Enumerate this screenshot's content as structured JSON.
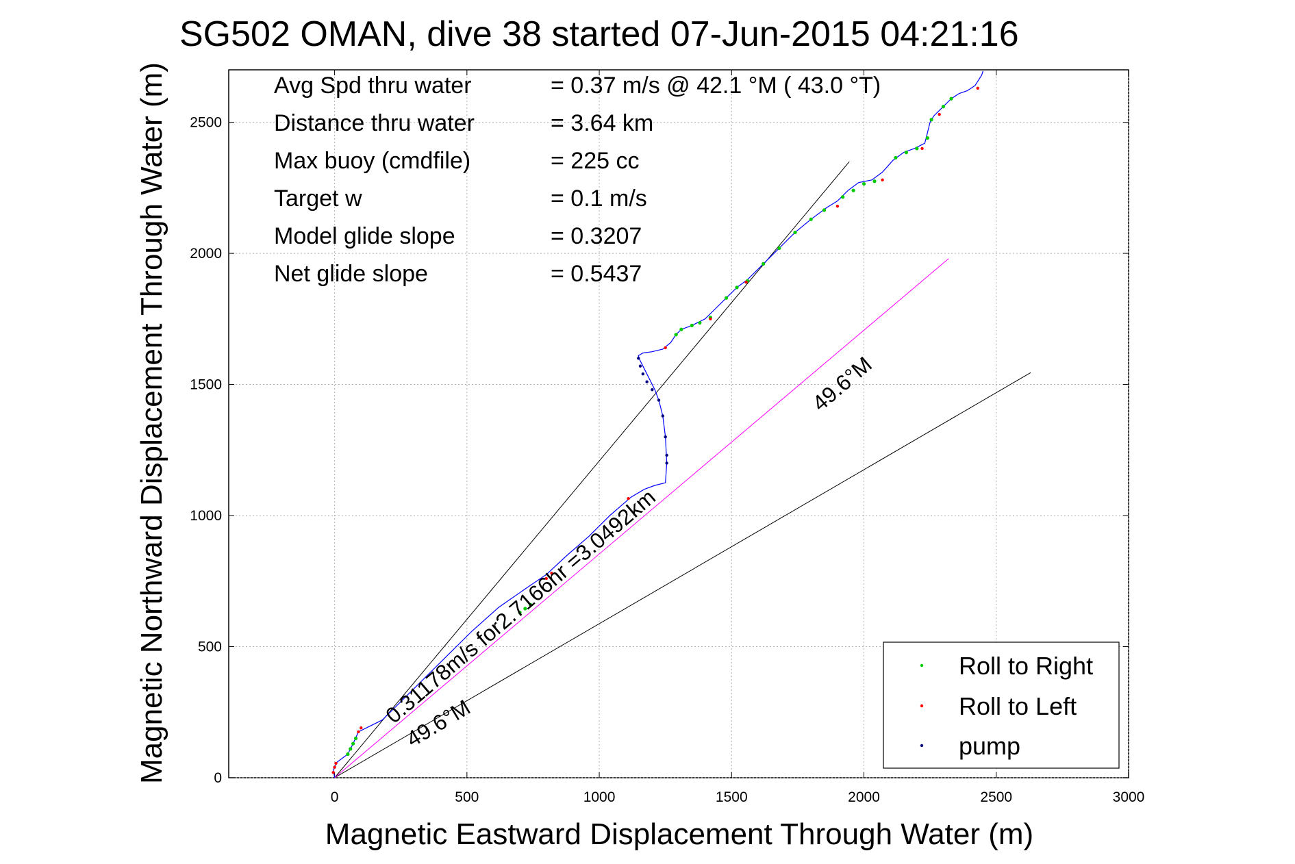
{
  "chart_data": {
    "type": "line",
    "title": "SG502 OMAN, dive 38 started 07-Jun-2015 04:21:16",
    "xlabel": "Magnetic Eastward Displacement Through Water (m)",
    "ylabel": "Magnetic Northward Displacement Through Water (m)",
    "xlim": [
      -400,
      3000
    ],
    "ylim": [
      0,
      2700
    ],
    "xticks": [
      0,
      500,
      1000,
      1500,
      2000,
      2500,
      3000
    ],
    "yticks": [
      0,
      500,
      1000,
      1500,
      2000,
      2500
    ],
    "grid": true,
    "legend_position": "bottom-right",
    "info_lines": [
      {
        "label": "Avg Spd thru water",
        "value": "=  0.37 m/s @  42.1 °M ( 43.0 °T)"
      },
      {
        "label": "Distance thru water",
        "value": "=  3.64 km"
      },
      {
        "label": "Max buoy (cmdfile)",
        "value": "= 225 cc"
      },
      {
        "label": "Target w",
        "value": "= 0.1 m/s"
      },
      {
        "label": "Model glide slope",
        "value": "= 0.3207"
      },
      {
        "label": "Net glide slope",
        "value": "= 0.5437"
      }
    ],
    "annotations": {
      "current_label": "0.31178m/s for2.7166hr =3.0492km",
      "current_heading_label": "49.6°M",
      "lower_heading_label": "49.6°M"
    },
    "reference_lines": [
      {
        "x": [
          0,
          1945
        ],
        "y": [
          0,
          2350
        ]
      },
      {
        "x": [
          0,
          2630
        ],
        "y": [
          0,
          1545
        ]
      },
      {
        "x": [
          0,
          2320
        ],
        "y": [
          0,
          1980
        ],
        "color": "#ff00ff"
      }
    ],
    "track": {
      "color": "#0000ff",
      "x": [
        0,
        -5,
        10,
        50,
        70,
        90,
        130,
        180,
        250,
        330,
        420,
        520,
        620,
        720,
        800,
        880,
        960,
        1040,
        1120,
        1170,
        1210,
        1250,
        1255,
        1250,
        1240,
        1225,
        1210,
        1195,
        1180,
        1165,
        1150,
        1148,
        1165,
        1200,
        1240,
        1270,
        1290,
        1310,
        1350,
        1400,
        1440,
        1480,
        1520,
        1560,
        1620,
        1680,
        1740,
        1800,
        1860,
        1900,
        1940,
        1980,
        2030,
        2070,
        2110,
        2150,
        2190,
        2230,
        2240,
        2250,
        2255,
        2265,
        2300,
        2330,
        2360,
        2390,
        2420,
        2445,
        2450
      ],
      "y": [
        0,
        30,
        60,
        90,
        130,
        175,
        195,
        220,
        290,
        370,
        460,
        560,
        650,
        720,
        775,
        850,
        920,
        1000,
        1070,
        1100,
        1115,
        1125,
        1200,
        1300,
        1380,
        1440,
        1480,
        1510,
        1540,
        1570,
        1600,
        1610,
        1620,
        1625,
        1635,
        1660,
        1690,
        1710,
        1725,
        1750,
        1790,
        1830,
        1870,
        1900,
        1960,
        2020,
        2080,
        2130,
        2175,
        2200,
        2240,
        2270,
        2280,
        2310,
        2355,
        2385,
        2400,
        2420,
        2460,
        2500,
        2510,
        2525,
        2560,
        2590,
        2610,
        2620,
        2640,
        2680,
        2695
      ]
    },
    "series": [
      {
        "name": "Roll to Right",
        "color": "#00cc00",
        "x": [
          50,
          60,
          70,
          80,
          700,
          720,
          740,
          1290,
          1310,
          1350,
          1380,
          1420,
          1480,
          1520,
          1560,
          1620,
          1680,
          1740,
          1800,
          1850,
          1920,
          1960,
          2000,
          2040,
          2120,
          2160,
          2200,
          2240,
          2255,
          2300,
          2330
        ],
        "y": [
          90,
          110,
          130,
          150,
          630,
          645,
          660,
          1690,
          1710,
          1725,
          1735,
          1755,
          1830,
          1870,
          1895,
          1960,
          2020,
          2080,
          2130,
          2165,
          2215,
          2240,
          2265,
          2275,
          2365,
          2385,
          2400,
          2440,
          2510,
          2560,
          2590
        ]
      },
      {
        "name": "Roll to Left",
        "color": "#ff0000",
        "x": [
          -5,
          0,
          5,
          90,
          100,
          800,
          820,
          1110,
          1250,
          1420,
          1555,
          1900,
          2070,
          2220,
          2285,
          2430
        ],
        "y": [
          20,
          40,
          55,
          175,
          190,
          760,
          780,
          1065,
          1640,
          1750,
          1890,
          2180,
          2280,
          2400,
          2530,
          2630
        ]
      },
      {
        "name": "pump",
        "color": "#000080",
        "x": [
          1148,
          1155,
          1165,
          1180,
          1200,
          1225,
          1240,
          1250,
          1255,
          1255
        ],
        "y": [
          1600,
          1570,
          1540,
          1510,
          1480,
          1440,
          1380,
          1300,
          1230,
          1200
        ]
      }
    ]
  }
}
